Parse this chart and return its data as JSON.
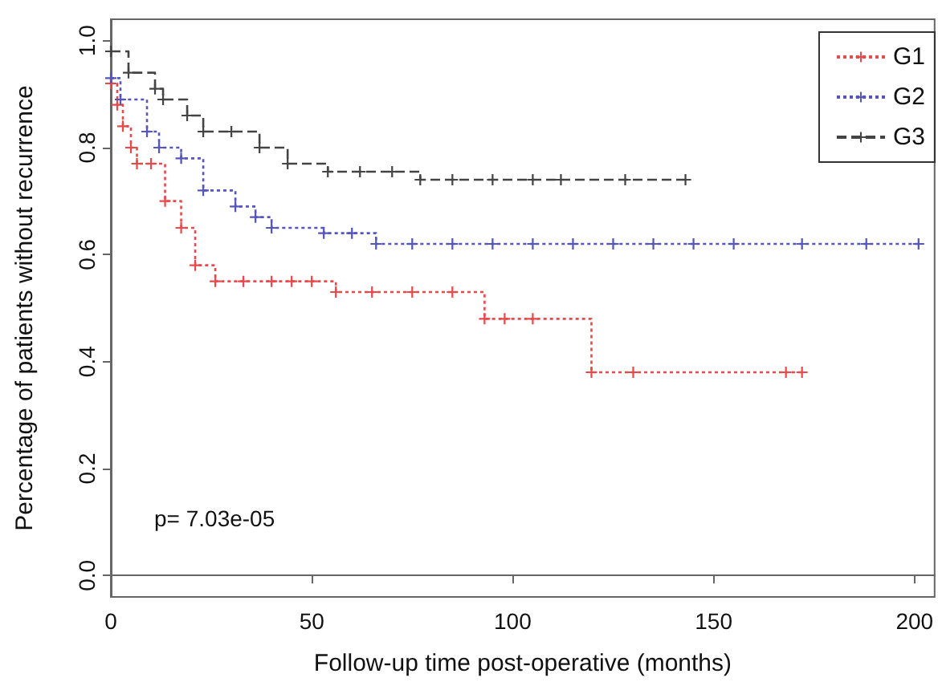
{
  "chart_data": {
    "type": "step",
    "xlabel": "Follow-up time post-operative (months)",
    "ylabel": "Percentage of patients without recurrence",
    "xlim": [
      0,
      205
    ],
    "xticks": [
      0,
      50,
      100,
      150,
      200
    ],
    "ylim": [
      -0.04,
      1.04
    ],
    "yticks": [
      {
        "value": 0,
        "label": "0.0"
      },
      {
        "value": 0.2,
        "label": "0.2"
      },
      {
        "value": 0.4,
        "label": "0.4"
      },
      {
        "value": 0.6,
        "label": "0.6"
      },
      {
        "value": 0.8,
        "label": "0.8"
      },
      {
        "value": 1,
        "label": "1.0"
      }
    ],
    "legend": "top right",
    "marker": "cross",
    "annotations": [
      "p= 7.03e-05"
    ],
    "series": [
      {
        "name": "G1",
        "color": "#e8494a",
        "line_style": "dotted",
        "x": [
          0,
          1.6,
          3,
          5,
          6.5,
          10,
          13.5,
          17.5,
          21,
          26,
          33,
          40,
          45,
          50,
          56,
          65,
          75,
          85,
          93,
          98,
          105,
          119.6,
          130,
          168,
          172
        ],
        "values": [
          0.92,
          0.88,
          0.84,
          0.8,
          0.77,
          0.77,
          0.7,
          0.65,
          0.58,
          0.55,
          0.55,
          0.55,
          0.55,
          0.55,
          0.53,
          0.53,
          0.53,
          0.53,
          0.48,
          0.48,
          0.48,
          0.38,
          0.38,
          0.38,
          0.38
        ]
      },
      {
        "name": "G2",
        "color": "#5555bb",
        "line_style": "dotted",
        "x": [
          0,
          2.4,
          9,
          12,
          17.5,
          23,
          31,
          36,
          40,
          53,
          60,
          66,
          75,
          85,
          95,
          105,
          115,
          125,
          135,
          145,
          155,
          172,
          188,
          201
        ],
        "values": [
          0.93,
          0.89,
          0.83,
          0.8,
          0.78,
          0.72,
          0.69,
          0.67,
          0.65,
          0.64,
          0.64,
          0.62,
          0.62,
          0.62,
          0.62,
          0.62,
          0.62,
          0.62,
          0.62,
          0.62,
          0.62,
          0.62,
          0.62,
          0.62
        ]
      },
      {
        "name": "G3",
        "color": "#444444",
        "line_style": "dashed",
        "x": [
          0,
          4.4,
          11,
          13,
          19,
          23,
          30,
          37,
          44,
          54,
          62,
          70,
          77,
          85,
          95,
          105,
          112,
          128,
          143
        ],
        "values": [
          0.98,
          0.94,
          0.91,
          0.89,
          0.86,
          0.83,
          0.83,
          0.8,
          0.77,
          0.755,
          0.755,
          0.755,
          0.74,
          0.74,
          0.74,
          0.74,
          0.74,
          0.74,
          0.74
        ]
      }
    ]
  }
}
